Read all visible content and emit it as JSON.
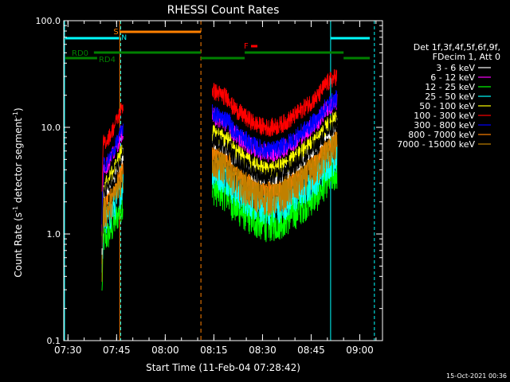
{
  "chart_data": {
    "type": "line",
    "title": "RHESSI Count Rates",
    "xlabel": "Start Time (11-Feb-04 07:28:42)",
    "ylabel_main": "Count Rate (s",
    "ylabel_sup1": "-1",
    "ylabel_mid": " detector segment",
    "ylabel_sup2": "-1",
    "ylabel_end": ")",
    "y_scale": "log",
    "ylim": [
      0.1,
      100
    ],
    "xlim": [
      "07:28:42",
      "09:07:00"
    ],
    "x_ticks": [
      {
        "label": "07:30",
        "t": "07:30"
      },
      {
        "label": "07:45",
        "t": "07:45"
      },
      {
        "label": "08:00",
        "t": "08:00"
      },
      {
        "label": "08:15",
        "t": "08:15"
      },
      {
        "label": "08:30",
        "t": "08:30"
      },
      {
        "label": "08:45",
        "t": "08:45"
      },
      {
        "label": "09:00",
        "t": "09:00"
      }
    ],
    "y_ticks": [
      {
        "label": "0.1",
        "v": 0.1
      },
      {
        "label": "1.0",
        "v": 1
      },
      {
        "label": "10.0",
        "v": 10
      },
      {
        "label": "100.0",
        "v": 100
      }
    ],
    "legend_header": [
      "Det 1f,3f,4f,5f,6f,9f,",
      "FDecim 1, Att 0"
    ],
    "legend_position": "right",
    "series": [
      {
        "name": "3 - 6 keV",
        "color": "#ffffff",
        "level": 4.5
      },
      {
        "name": "6 - 12 keV",
        "color": "#ff00ff",
        "level": 7.5
      },
      {
        "name": "12 - 25 keV",
        "color": "#00ff00",
        "level": 1.6
      },
      {
        "name": "25 - 50 keV",
        "color": "#00ffff",
        "level": 2.3
      },
      {
        "name": "50 - 100 keV",
        "color": "#ffff00",
        "level": 5.2
      },
      {
        "name": "100 - 300 keV",
        "color": "#ff0000",
        "level": 13.0
      },
      {
        "name": "300 - 800 keV",
        "color": "#0000ff",
        "level": 8.0
      },
      {
        "name": "800 - 7000 keV",
        "color": "#ff8000",
        "level": 3.4
      },
      {
        "name": "7000 - 15000 keV",
        "color": "#c08000",
        "level": 2.8
      }
    ],
    "data_segments": [
      {
        "start": "07:40:30",
        "end": "07:47:00"
      },
      {
        "start": "08:14:30",
        "end": "08:53:00"
      }
    ],
    "spectrum_black_line": {
      "name": "3 - 6 keV",
      "color": "#000000"
    },
    "annotations": {
      "S": {
        "label": "S",
        "color": "#ff8000",
        "t": "07:45:00"
      },
      "N": {
        "label": "N",
        "color": "#00ffff",
        "t": "07:47:30"
      },
      "F": {
        "label": "F",
        "color": "#ff0000",
        "t": "08:24:00"
      },
      "RD0": {
        "label": "RD0",
        "color": "#008000"
      },
      "RD4": {
        "label": "RD4",
        "color": "#008000"
      }
    },
    "footer_timestamp": "15-Oct-2021 00:36"
  }
}
